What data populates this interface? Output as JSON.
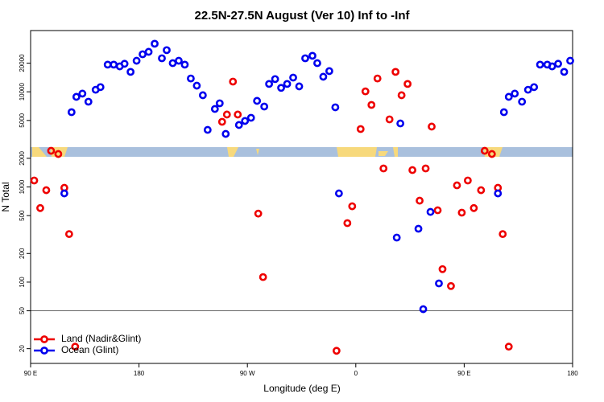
{
  "chart_data": {
    "type": "scatter",
    "title": "22.5N-27.5N August (Ver 10)   Inf to -Inf",
    "x_label": "Longitude (deg E)",
    "y_label": "N Total",
    "xlim": [
      90,
      540
    ],
    "xticks": [
      {
        "value": 90,
        "label": "90 E"
      },
      {
        "value": 180,
        "label": "180"
      },
      {
        "value": 270,
        "label": "90 W"
      },
      {
        "value": 360,
        "label": "0"
      },
      {
        "value": 450,
        "label": "90 E"
      },
      {
        "value": 540,
        "label": "180"
      }
    ],
    "ylim": [
      14,
      44000
    ],
    "yticks": [
      20,
      50,
      100,
      200,
      500,
      1000,
      2000,
      5000,
      10000,
      20000
    ],
    "y_scale": "log",
    "hline": 50,
    "legend": "bottom-left",
    "series": [
      {
        "name": "Land (Nadir&Glint)",
        "color": "#ee0000",
        "x": [
          93,
          98,
          103,
          107,
          113,
          118,
          122,
          127,
          249,
          253,
          262,
          258,
          279,
          283,
          344,
          353,
          357,
          364,
          368,
          373,
          378,
          383,
          388,
          393,
          398,
          403,
          407,
          413,
          418,
          423,
          428,
          432,
          439,
          444,
          448,
          453,
          458,
          464,
          467,
          473,
          478,
          482,
          487
        ],
        "values": [
          1170,
          600,
          925,
          2400,
          2220,
          980,
          320,
          21,
          4840,
          5770,
          5770,
          12800,
          525,
          113,
          19,
          417,
          627,
          4060,
          10100,
          7280,
          13800,
          1565,
          5130,
          16200,
          9200,
          12100,
          1505,
          718,
          1565,
          4310,
          569,
          137,
          91,
          1040,
          537,
          1170,
          600,
          925,
          2400,
          2220,
          980,
          320,
          21
        ]
      },
      {
        "name": "Ocean (Glint)",
        "color": "#0000ee",
        "x": [
          118,
          124,
          128,
          133,
          138,
          144,
          148,
          154,
          159,
          164,
          168,
          173,
          178,
          183,
          188,
          193,
          199,
          203,
          208,
          213,
          218,
          223,
          228,
          233,
          237,
          243,
          247,
          252,
          263,
          268,
          273,
          278,
          284,
          288,
          293,
          298,
          303,
          308,
          313,
          318,
          324,
          328,
          333,
          338,
          343,
          346,
          394,
          397,
          412,
          416,
          422,
          429,
          478,
          483,
          487,
          492,
          498,
          503,
          508,
          513,
          519,
          523,
          528,
          533,
          538
        ],
        "values": [
          856,
          6110,
          8850,
          9570,
          7870,
          10500,
          11200,
          19300,
          19300,
          18500,
          19700,
          16200,
          21200,
          24800,
          26300,
          32000,
          22500,
          27400,
          20000,
          21200,
          19300,
          13800,
          11600,
          9200,
          3980,
          6600,
          7570,
          3610,
          4480,
          4940,
          5330,
          8030,
          7000,
          12100,
          13600,
          11000,
          12100,
          14100,
          11400,
          22500,
          23900,
          20000,
          14400,
          16500,
          6870,
          856,
          294,
          4650,
          364,
          52,
          547,
          97,
          856,
          6110,
          8850,
          9570,
          7870,
          10500,
          11200,
          19300,
          19300,
          18500,
          19700,
          16200,
          21200
        ]
      }
    ]
  }
}
